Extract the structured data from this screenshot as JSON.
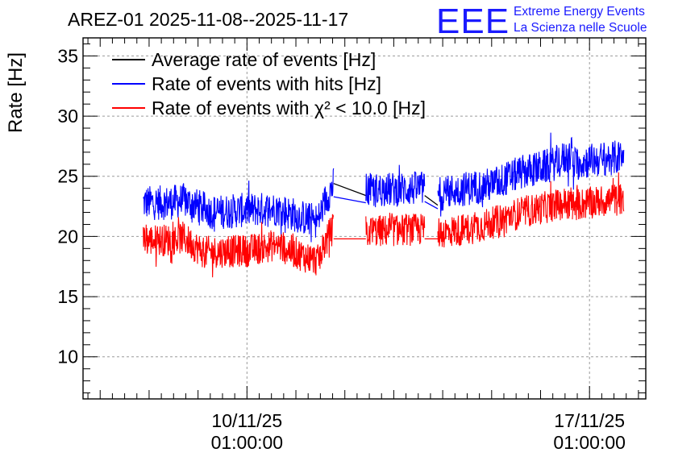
{
  "chart_data": {
    "type": "line",
    "title": "AREZ-01 2025-11-08--2025-11-17",
    "ylabel": "Rate [Hz]",
    "xlabel": "",
    "ylim": [
      6.5,
      36.5
    ],
    "xlim_days": [
      -3.35,
      8.15
    ],
    "y_ticks": [
      10,
      15,
      20,
      25,
      30,
      35
    ],
    "y_tick_labels": [
      "10",
      "15",
      "20",
      "25",
      "30",
      "35"
    ],
    "x_ticks_days": [
      0,
      7
    ],
    "x_tick_labels": [
      {
        "date": "10/11/25",
        "time": "01:00:00"
      },
      {
        "date": "17/11/25",
        "time": "01:00:00"
      }
    ],
    "grid": true,
    "legend_position": "top-left",
    "series": [
      {
        "name": "Average rate of events [Hz]",
        "color": "#000000"
      },
      {
        "name": "Rate of events with hits [Hz]",
        "color": "#0000ff"
      },
      {
        "name": "Rate of events with χ² < 10.0 [Hz]",
        "color": "#ff0000"
      }
    ],
    "segments_days": [
      {
        "start": -2.12,
        "end": 1.77,
        "hits": [
          [
            -2.12,
            22.8
          ],
          [
            -1.6,
            22.8
          ],
          [
            -1.3,
            23.0
          ],
          [
            -0.7,
            22.0
          ],
          [
            0.0,
            22.2
          ],
          [
            0.6,
            22.3
          ],
          [
            1.2,
            21.5
          ],
          [
            1.45,
            21.3
          ],
          [
            1.6,
            23.0
          ],
          [
            1.77,
            24.3
          ]
        ],
        "chi2": [
          [
            -2.12,
            19.7
          ],
          [
            -1.6,
            19.7
          ],
          [
            -1.3,
            19.9
          ],
          [
            -0.9,
            18.7
          ],
          [
            0.0,
            18.8
          ],
          [
            0.6,
            19.3
          ],
          [
            1.2,
            18.3
          ],
          [
            1.45,
            18.0
          ],
          [
            1.6,
            19.5
          ],
          [
            1.77,
            20.8
          ]
        ]
      },
      {
        "start": 2.43,
        "end": 3.63,
        "hits": [
          [
            2.43,
            23.8
          ],
          [
            3.0,
            23.9
          ],
          [
            3.63,
            24.0
          ]
        ],
        "chi2": [
          [
            2.43,
            20.4
          ],
          [
            3.0,
            20.5
          ],
          [
            3.63,
            20.6
          ]
        ]
      },
      {
        "start": 3.9,
        "end": 6.65,
        "hits": [
          [
            3.9,
            23.5
          ],
          [
            4.5,
            24.0
          ],
          [
            5.0,
            24.3
          ],
          [
            5.6,
            25.3
          ],
          [
            6.2,
            25.9
          ],
          [
            6.65,
            26.8
          ]
        ],
        "chi2": [
          [
            3.9,
            20.3
          ],
          [
            4.5,
            20.6
          ],
          [
            5.0,
            21.1
          ],
          [
            5.6,
            22.0
          ],
          [
            6.2,
            22.5
          ],
          [
            6.65,
            22.9
          ]
        ]
      },
      {
        "start": 6.65,
        "end": 7.7,
        "hits": [
          [
            6.65,
            26.0
          ],
          [
            7.0,
            26.3
          ],
          [
            7.4,
            26.5
          ],
          [
            7.7,
            26.6
          ]
        ],
        "chi2": [
          [
            6.65,
            22.6
          ],
          [
            7.0,
            22.8
          ],
          [
            7.4,
            23.0
          ],
          [
            7.7,
            23.1
          ]
        ]
      }
    ],
    "gap_connectors_days": [
      {
        "series": "Average rate of events [Hz]",
        "points": [
          [
            1.77,
            24.4
          ],
          [
            2.43,
            23.4
          ]
        ]
      },
      {
        "series": "Average rate of events [Hz]",
        "points": [
          [
            3.63,
            23.4
          ],
          [
            3.9,
            22.6
          ]
        ]
      },
      {
        "series": "Rate of events with hits [Hz]",
        "points": [
          [
            1.77,
            23.3
          ],
          [
            2.43,
            22.8
          ]
        ]
      },
      {
        "series": "Rate of events with hits [Hz]",
        "points": [
          [
            3.63,
            22.9
          ],
          [
            3.9,
            22.3
          ]
        ]
      },
      {
        "series": "Rate of events with χ² < 10.0 [Hz]",
        "points": [
          [
            1.77,
            19.8
          ],
          [
            2.43,
            19.8
          ]
        ]
      },
      {
        "series": "Rate of events with χ² < 10.0 [Hz]",
        "points": [
          [
            3.63,
            19.8
          ],
          [
            3.9,
            19.8
          ]
        ]
      }
    ]
  },
  "logo": {
    "text": "EEE",
    "line1": "Extreme Energy Events",
    "line2": "La Scienza nelle Scuole",
    "color": "#1a1aff"
  }
}
